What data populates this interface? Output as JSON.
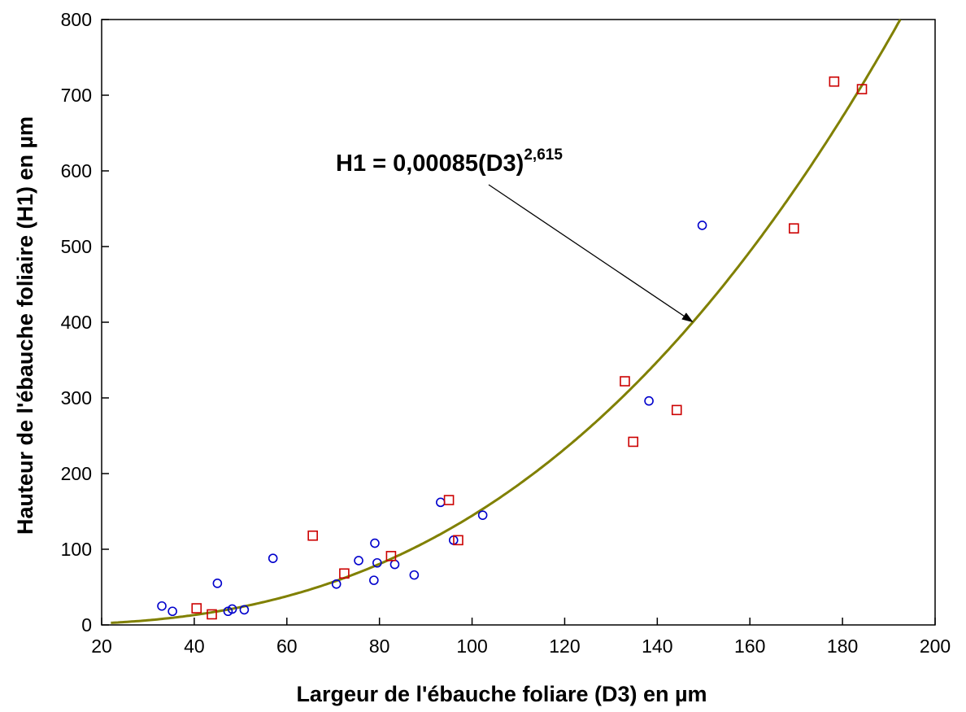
{
  "chart_data": {
    "type": "scatter",
    "title": "",
    "xlabel": "Largeur de l'ébauche foliare (D3) en µm",
    "ylabel": "Hauteur de l'ébauche foliaire (H1) en µm",
    "xlim": [
      20,
      200
    ],
    "ylim": [
      0,
      800
    ],
    "xticks": [
      "20",
      "40",
      "60",
      "80",
      "100",
      "120",
      "140",
      "160",
      "180",
      "200"
    ],
    "yticks": [
      "0",
      "100",
      "200",
      "300",
      "400",
      "500",
      "600",
      "700",
      "800"
    ],
    "grid": false,
    "legend": "none",
    "series": [
      {
        "marker": "circle",
        "color": "#0000cc",
        "points": [
          [
            33,
            25
          ],
          [
            35.3,
            18
          ],
          [
            45,
            55
          ],
          [
            47.3,
            18
          ],
          [
            48.2,
            21
          ],
          [
            50.8,
            20
          ],
          [
            57,
            88
          ],
          [
            70.7,
            54
          ],
          [
            75.5,
            85
          ],
          [
            78.8,
            59
          ],
          [
            79,
            108
          ],
          [
            79.5,
            82
          ],
          [
            83.3,
            80
          ],
          [
            87.5,
            66
          ],
          [
            93.2,
            162
          ],
          [
            96,
            112
          ],
          [
            102.3,
            145
          ],
          [
            138.2,
            296
          ],
          [
            149.7,
            528
          ]
        ]
      },
      {
        "marker": "square",
        "color": "#cc0000",
        "points": [
          [
            40.5,
            22
          ],
          [
            43.8,
            14
          ],
          [
            65.6,
            118
          ],
          [
            72.4,
            68
          ],
          [
            82.5,
            91
          ],
          [
            95,
            165
          ],
          [
            97,
            112
          ],
          [
            133,
            322
          ],
          [
            134.8,
            242
          ],
          [
            144.2,
            284
          ],
          [
            169.5,
            524
          ],
          [
            178.2,
            718
          ],
          [
            184.2,
            708
          ]
        ]
      }
    ],
    "fit": {
      "label_main": "H1 = 0,00085(D3)",
      "label_exponent": "2,615",
      "coefficient": 0.00085,
      "exponent": 2.615,
      "color": "#808000"
    }
  }
}
